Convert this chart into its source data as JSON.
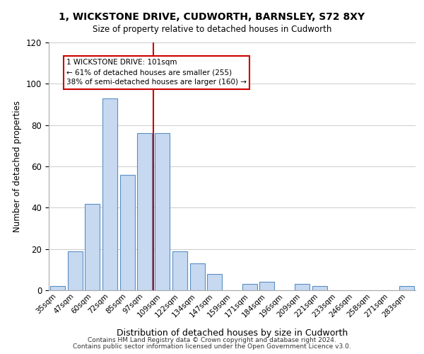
{
  "title": "1, WICKSTONE DRIVE, CUDWORTH, BARNSLEY, S72 8XY",
  "subtitle": "Size of property relative to detached houses in Cudworth",
  "xlabel": "Distribution of detached houses by size in Cudworth",
  "ylabel": "Number of detached properties",
  "bar_labels": [
    "35sqm",
    "47sqm",
    "60sqm",
    "72sqm",
    "85sqm",
    "97sqm",
    "109sqm",
    "122sqm",
    "134sqm",
    "147sqm",
    "159sqm",
    "171sqm",
    "184sqm",
    "196sqm",
    "209sqm",
    "221sqm",
    "233sqm",
    "246sqm",
    "258sqm",
    "271sqm",
    "283sqm"
  ],
  "bar_values": [
    2,
    19,
    42,
    93,
    56,
    76,
    76,
    19,
    13,
    8,
    0,
    3,
    4,
    0,
    3,
    2,
    0,
    0,
    0,
    0,
    2
  ],
  "bar_color": "#c6d9f1",
  "bar_edgecolor": "#5a8fc3",
  "vline_x": 5.5,
  "vline_color": "#cc0000",
  "annotation_title": "1 WICKSTONE DRIVE: 101sqm",
  "annotation_line1": "← 61% of detached houses are smaller (255)",
  "annotation_line2": "38% of semi-detached houses are larger (160) →",
  "annotation_box_edgecolor": "#cc0000",
  "ylim": [
    0,
    120
  ],
  "yticks": [
    0,
    20,
    40,
    60,
    80,
    100,
    120
  ],
  "footer1": "Contains HM Land Registry data © Crown copyright and database right 2024.",
  "footer2": "Contains public sector information licensed under the Open Government Licence v3.0."
}
